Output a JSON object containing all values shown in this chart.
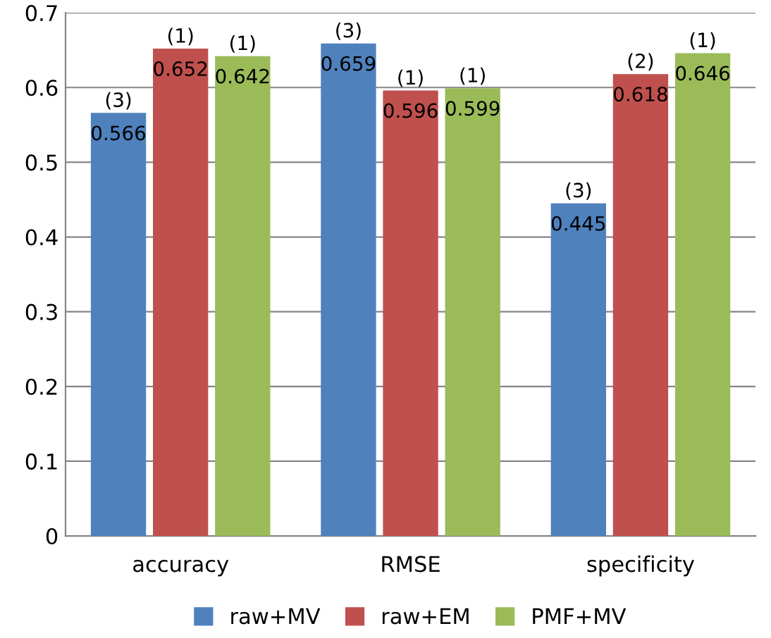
{
  "chart_data": {
    "type": "bar",
    "categories": [
      "accuracy",
      "RMSE",
      "specificity"
    ],
    "series": [
      {
        "name": "raw+MV",
        "color": "#4f81bd",
        "values": [
          0.566,
          0.659,
          0.445
        ]
      },
      {
        "name": "raw+EM",
        "color": "#c0504d",
        "values": [
          0.652,
          0.596,
          0.618
        ]
      },
      {
        "name": "PMF+MV",
        "color": "#9bbb59",
        "values": [
          0.642,
          0.599,
          0.646
        ]
      }
    ],
    "ylim": [
      0,
      0.7
    ],
    "yticks": [
      0,
      0.1,
      0.2,
      0.3,
      0.4,
      0.5,
      0.6,
      0.7
    ],
    "grid": "y",
    "legend": "bottom",
    "data_labels": true,
    "annotations": [
      "(3)",
      "(3)",
      "(3)",
      "(1)",
      "(1)",
      "(2)",
      "(1)",
      "(1)",
      "(1)"
    ]
  }
}
